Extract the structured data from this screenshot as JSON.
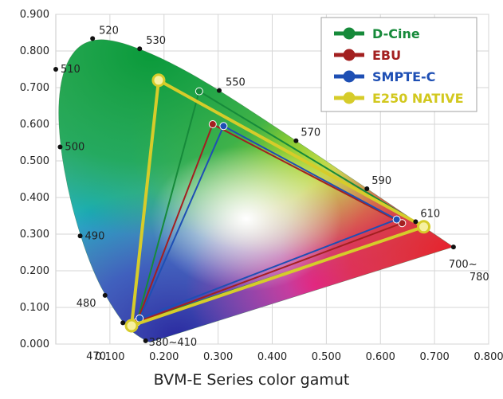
{
  "caption": "BVM-E Series color gamut",
  "chart_data": {
    "type": "scatter",
    "x_ticks": [
      "0.100",
      "0.200",
      "0.300",
      "0.400",
      "0.500",
      "0.600",
      "0.700",
      "0.800"
    ],
    "y_ticks": [
      "0.000",
      "0.100",
      "0.200",
      "0.300",
      "0.400",
      "0.500",
      "0.600",
      "0.700",
      "0.800",
      "0.900"
    ],
    "xlim": [
      0,
      0.8
    ],
    "ylim": [
      0,
      0.9
    ],
    "grid": true,
    "legend_position": "top-right",
    "locus": [
      [
        0.1741,
        0.005
      ],
      [
        0.1666,
        0.0089
      ],
      [
        0.144,
        0.0297
      ],
      [
        0.1241,
        0.0578
      ],
      [
        0.0913,
        0.1327
      ],
      [
        0.0687,
        0.2007
      ],
      [
        0.0454,
        0.295
      ],
      [
        0.0235,
        0.4127
      ],
      [
        0.0082,
        0.5384
      ],
      [
        0.0039,
        0.6548
      ],
      [
        0.0139,
        0.7502
      ],
      [
        0.0389,
        0.812
      ],
      [
        0.0743,
        0.8338
      ],
      [
        0.1142,
        0.8262
      ],
      [
        0.1547,
        0.8059
      ],
      [
        0.1929,
        0.7816
      ],
      [
        0.2296,
        0.7543
      ],
      [
        0.2658,
        0.7243
      ],
      [
        0.3016,
        0.6923
      ],
      [
        0.3373,
        0.6589
      ],
      [
        0.3731,
        0.6245
      ],
      [
        0.4087,
        0.5896
      ],
      [
        0.4441,
        0.5547
      ],
      [
        0.4788,
        0.5202
      ],
      [
        0.5125,
        0.4866
      ],
      [
        0.5448,
        0.4544
      ],
      [
        0.5752,
        0.4242
      ],
      [
        0.6029,
        0.3965
      ],
      [
        0.627,
        0.3725
      ],
      [
        0.6482,
        0.3514
      ],
      [
        0.6658,
        0.334
      ],
      [
        0.6801,
        0.3197
      ],
      [
        0.6915,
        0.3083
      ],
      [
        0.7006,
        0.2993
      ],
      [
        0.714,
        0.286
      ],
      [
        0.7347,
        0.2653
      ]
    ],
    "wavelength_labels": [
      {
        "text": "520",
        "x": 0.068,
        "y": 0.834
      },
      {
        "text": "530",
        "x": 0.155,
        "y": 0.806
      },
      {
        "text": "510",
        "x": 0.0,
        "y": 0.75
      },
      {
        "text": "550",
        "x": 0.302,
        "y": 0.692
      },
      {
        "text": "570",
        "x": 0.444,
        "y": 0.555
      },
      {
        "text": "500",
        "x": 0.008,
        "y": 0.538
      },
      {
        "text": "590",
        "x": 0.575,
        "y": 0.424
      },
      {
        "text": "610",
        "x": 0.665,
        "y": 0.334
      },
      {
        "text": "490",
        "x": 0.045,
        "y": 0.295
      },
      {
        "text": "700~",
        "x": 0.735,
        "y": 0.265
      },
      {
        "text": "780",
        "x": 0.735,
        "y": 0.265
      },
      {
        "text": "480",
        "x": 0.091,
        "y": 0.133
      },
      {
        "text": "470",
        "x": 0.124,
        "y": 0.058
      },
      {
        "text": "380~410",
        "x": 0.166,
        "y": 0.009
      }
    ],
    "series": [
      {
        "name": "D-Cine",
        "color": "#168a3a",
        "label_color": "#168a3a",
        "points": [
          [
            0.68,
            0.32
          ],
          [
            0.265,
            0.69
          ],
          [
            0.15,
            0.06
          ]
        ]
      },
      {
        "name": "EBU",
        "color": "#a32020",
        "label_color": "#a32020",
        "points": [
          [
            0.64,
            0.33
          ],
          [
            0.29,
            0.6
          ],
          [
            0.15,
            0.06
          ]
        ]
      },
      {
        "name": "SMPTE-C",
        "color": "#1e4fb4",
        "label_color": "#1e4fb4",
        "points": [
          [
            0.63,
            0.34
          ],
          [
            0.31,
            0.595
          ],
          [
            0.155,
            0.07
          ]
        ]
      },
      {
        "name": "E250 NATIVE",
        "color": "#d6cc2a",
        "label_color": "#d2c81e",
        "points": [
          [
            0.68,
            0.32
          ],
          [
            0.19,
            0.72
          ],
          [
            0.14,
            0.05
          ]
        ]
      }
    ]
  }
}
